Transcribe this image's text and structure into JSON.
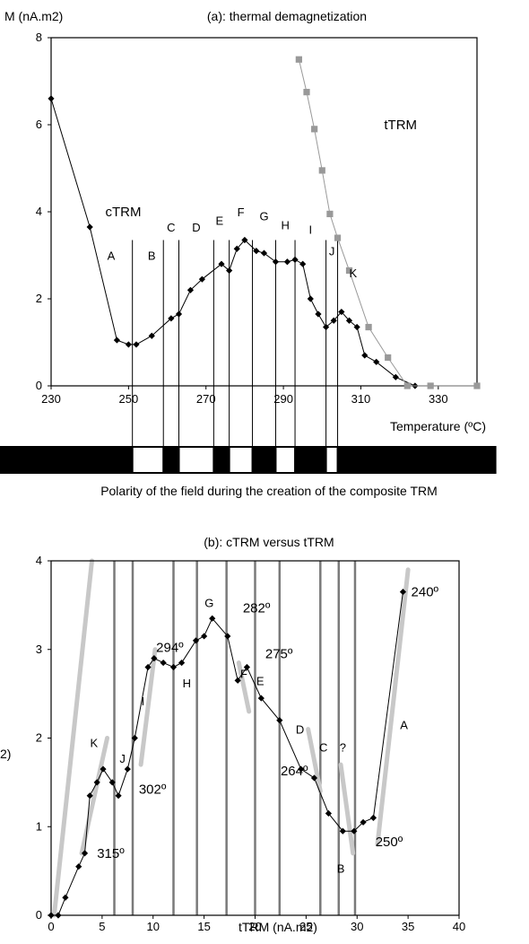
{
  "chart_data": [
    {
      "type": "line",
      "title": "(a): thermal demagnetization",
      "ylabel": "M (nA.m2)",
      "xlabel": "Temperature (ºC)",
      "xlim": [
        230,
        340
      ],
      "ylim": [
        0,
        8
      ],
      "xticks": [
        230,
        250,
        270,
        290,
        310,
        330
      ],
      "yticks": [
        0,
        2,
        4,
        6,
        8
      ],
      "series": [
        {
          "name": "cTRM",
          "color": "#000000",
          "marker": "diamond",
          "x": [
            230,
            240,
            247,
            250,
            252,
            256,
            261,
            263,
            266,
            269,
            274,
            276,
            278,
            280,
            283,
            285,
            288,
            291,
            293,
            295,
            297,
            299,
            301,
            303,
            305,
            307,
            309,
            311,
            314,
            319,
            324
          ],
          "y": [
            6.6,
            3.65,
            1.05,
            0.95,
            0.95,
            1.15,
            1.55,
            1.65,
            2.2,
            2.45,
            2.8,
            2.65,
            3.15,
            3.35,
            3.1,
            3.05,
            2.85,
            2.85,
            2.9,
            2.8,
            2.0,
            1.65,
            1.35,
            1.5,
            1.7,
            1.5,
            1.35,
            0.7,
            0.55,
            0.2,
            0.0
          ]
        },
        {
          "name": "tTRM",
          "color": "#999999",
          "marker": "square",
          "x": [
            294,
            296,
            298,
            300,
            302,
            304,
            307,
            312,
            317,
            322,
            328,
            340
          ],
          "y": [
            7.5,
            6.75,
            5.9,
            4.95,
            3.95,
            3.4,
            2.65,
            1.35,
            0.65,
            0.0,
            0.0,
            0.0
          ]
        }
      ],
      "annotations": [
        {
          "text": "cTRM",
          "x": 244,
          "y": 3.9
        },
        {
          "text": "tTRM",
          "x": 316,
          "y": 5.9
        }
      ],
      "segment_boundaries": [
        251,
        259,
        263,
        272,
        276,
        282,
        288,
        293,
        301,
        304
      ],
      "segment_labels": [
        {
          "text": "A",
          "x": 245.5,
          "y": 2.9
        },
        {
          "text": "B",
          "x": 256,
          "y": 2.9
        },
        {
          "text": "C",
          "x": 261,
          "y": 3.55
        },
        {
          "text": "D",
          "x": 267.5,
          "y": 3.55
        },
        {
          "text": "E",
          "x": 273.5,
          "y": 3.7
        },
        {
          "text": "F",
          "x": 279,
          "y": 3.9
        },
        {
          "text": "G",
          "x": 285,
          "y": 3.8
        },
        {
          "text": "H",
          "x": 290.5,
          "y": 3.6
        },
        {
          "text": "I",
          "x": 297,
          "y": 3.5
        },
        {
          "text": "J",
          "x": 302.5,
          "y": 3.0
        },
        {
          "text": "K",
          "x": 308,
          "y": 2.5
        }
      ],
      "polarity_caption": "Polarity of the field during the creation of the composite TRM",
      "polarity_bar": {
        "x_start": 215,
        "x_end": 345,
        "white_intervals": [
          [
            251,
            259
          ],
          [
            263,
            272
          ],
          [
            276,
            282
          ],
          [
            288,
            293
          ],
          [
            301,
            304
          ]
        ]
      }
    },
    {
      "type": "scatter",
      "title": "(b): cTRM versus tTRM",
      "xlabel": "tTRM  (nA.m2)",
      "ylabel": "2)",
      "xlim": [
        0,
        40
      ],
      "ylim": [
        0,
        4
      ],
      "xticks": [
        0,
        5,
        10,
        15,
        20,
        25,
        30,
        35,
        40
      ],
      "yticks": [
        0,
        1,
        2,
        3,
        4
      ],
      "series": [
        {
          "name": "",
          "color": "#000000",
          "marker": "diamond",
          "x": [
            0.0,
            0.7,
            1.4,
            2.7,
            3.3,
            3.8,
            4.5,
            5.1,
            6.0,
            6.6,
            7.5,
            8.2,
            9.5,
            10.1,
            11.0,
            12.0,
            12.8,
            14.2,
            15.0,
            15.8,
            17.3,
            18.3,
            19.2,
            20.6,
            22.4,
            24.5,
            25.8,
            27.2,
            28.6,
            29.7,
            30.6,
            31.6,
            34.5
          ],
          "y": [
            0.0,
            0.0,
            0.2,
            0.55,
            0.7,
            1.35,
            1.5,
            1.65,
            1.5,
            1.35,
            1.65,
            2.0,
            2.8,
            2.9,
            2.85,
            2.8,
            2.85,
            3.1,
            3.15,
            3.35,
            3.15,
            2.65,
            2.8,
            2.45,
            2.2,
            1.65,
            1.55,
            1.15,
            0.95,
            0.95,
            1.05,
            1.1,
            3.65
          ]
        }
      ],
      "vertical_lines": [
        6.2,
        8.0,
        12.0,
        14.3,
        17.2,
        20.0,
        22.4,
        26.4,
        28.2,
        29.8
      ],
      "trend_segments": [
        [
          [
            0.3,
            0.0
          ],
          [
            4.0,
            4.0
          ]
        ],
        [
          [
            3.0,
            0.7
          ],
          [
            5.5,
            2.0
          ]
        ],
        [
          [
            8.8,
            1.7
          ],
          [
            10.2,
            3.0
          ]
        ],
        [
          [
            18.4,
            2.85
          ],
          [
            19.4,
            2.3
          ]
        ],
        [
          [
            25.2,
            2.1
          ],
          [
            26.4,
            1.4
          ]
        ],
        [
          [
            28.4,
            1.7
          ],
          [
            29.6,
            0.7
          ]
        ],
        [
          [
            32.0,
            0.8
          ],
          [
            35.0,
            3.9
          ]
        ]
      ],
      "point_labels": [
        {
          "text": "240º",
          "x": 35.3,
          "y": 3.6
        },
        {
          "text": "250º",
          "x": 31.8,
          "y": 0.78
        },
        {
          "text": "264º",
          "x": 22.5,
          "y": 1.58
        },
        {
          "text": "275º",
          "x": 21.0,
          "y": 2.9
        },
        {
          "text": "282º",
          "x": 18.8,
          "y": 3.42
        },
        {
          "text": "294º",
          "x": 10.3,
          "y": 2.97
        },
        {
          "text": "302º",
          "x": 8.6,
          "y": 1.37
        },
        {
          "text": "315º",
          "x": 4.5,
          "y": 0.65
        }
      ],
      "segment_labels": [
        {
          "text": "A",
          "x": 34.6,
          "y": 2.1
        },
        {
          "text": "B",
          "x": 28.4,
          "y": 0.48
        },
        {
          "text": "C",
          "x": 26.7,
          "y": 1.85
        },
        {
          "text": "?",
          "x": 28.6,
          "y": 1.85
        },
        {
          "text": "D",
          "x": 24.4,
          "y": 2.05
        },
        {
          "text": "E",
          "x": 20.5,
          "y": 2.6
        },
        {
          "text": "F",
          "x": 18.9,
          "y": 2.68
        },
        {
          "text": "G",
          "x": 15.5,
          "y": 3.48
        },
        {
          "text": "H",
          "x": 13.3,
          "y": 2.57
        },
        {
          "text": "I",
          "x": 9.0,
          "y": 2.37
        },
        {
          "text": "J",
          "x": 7.0,
          "y": 1.72
        },
        {
          "text": "K",
          "x": 4.2,
          "y": 1.9
        }
      ]
    }
  ]
}
